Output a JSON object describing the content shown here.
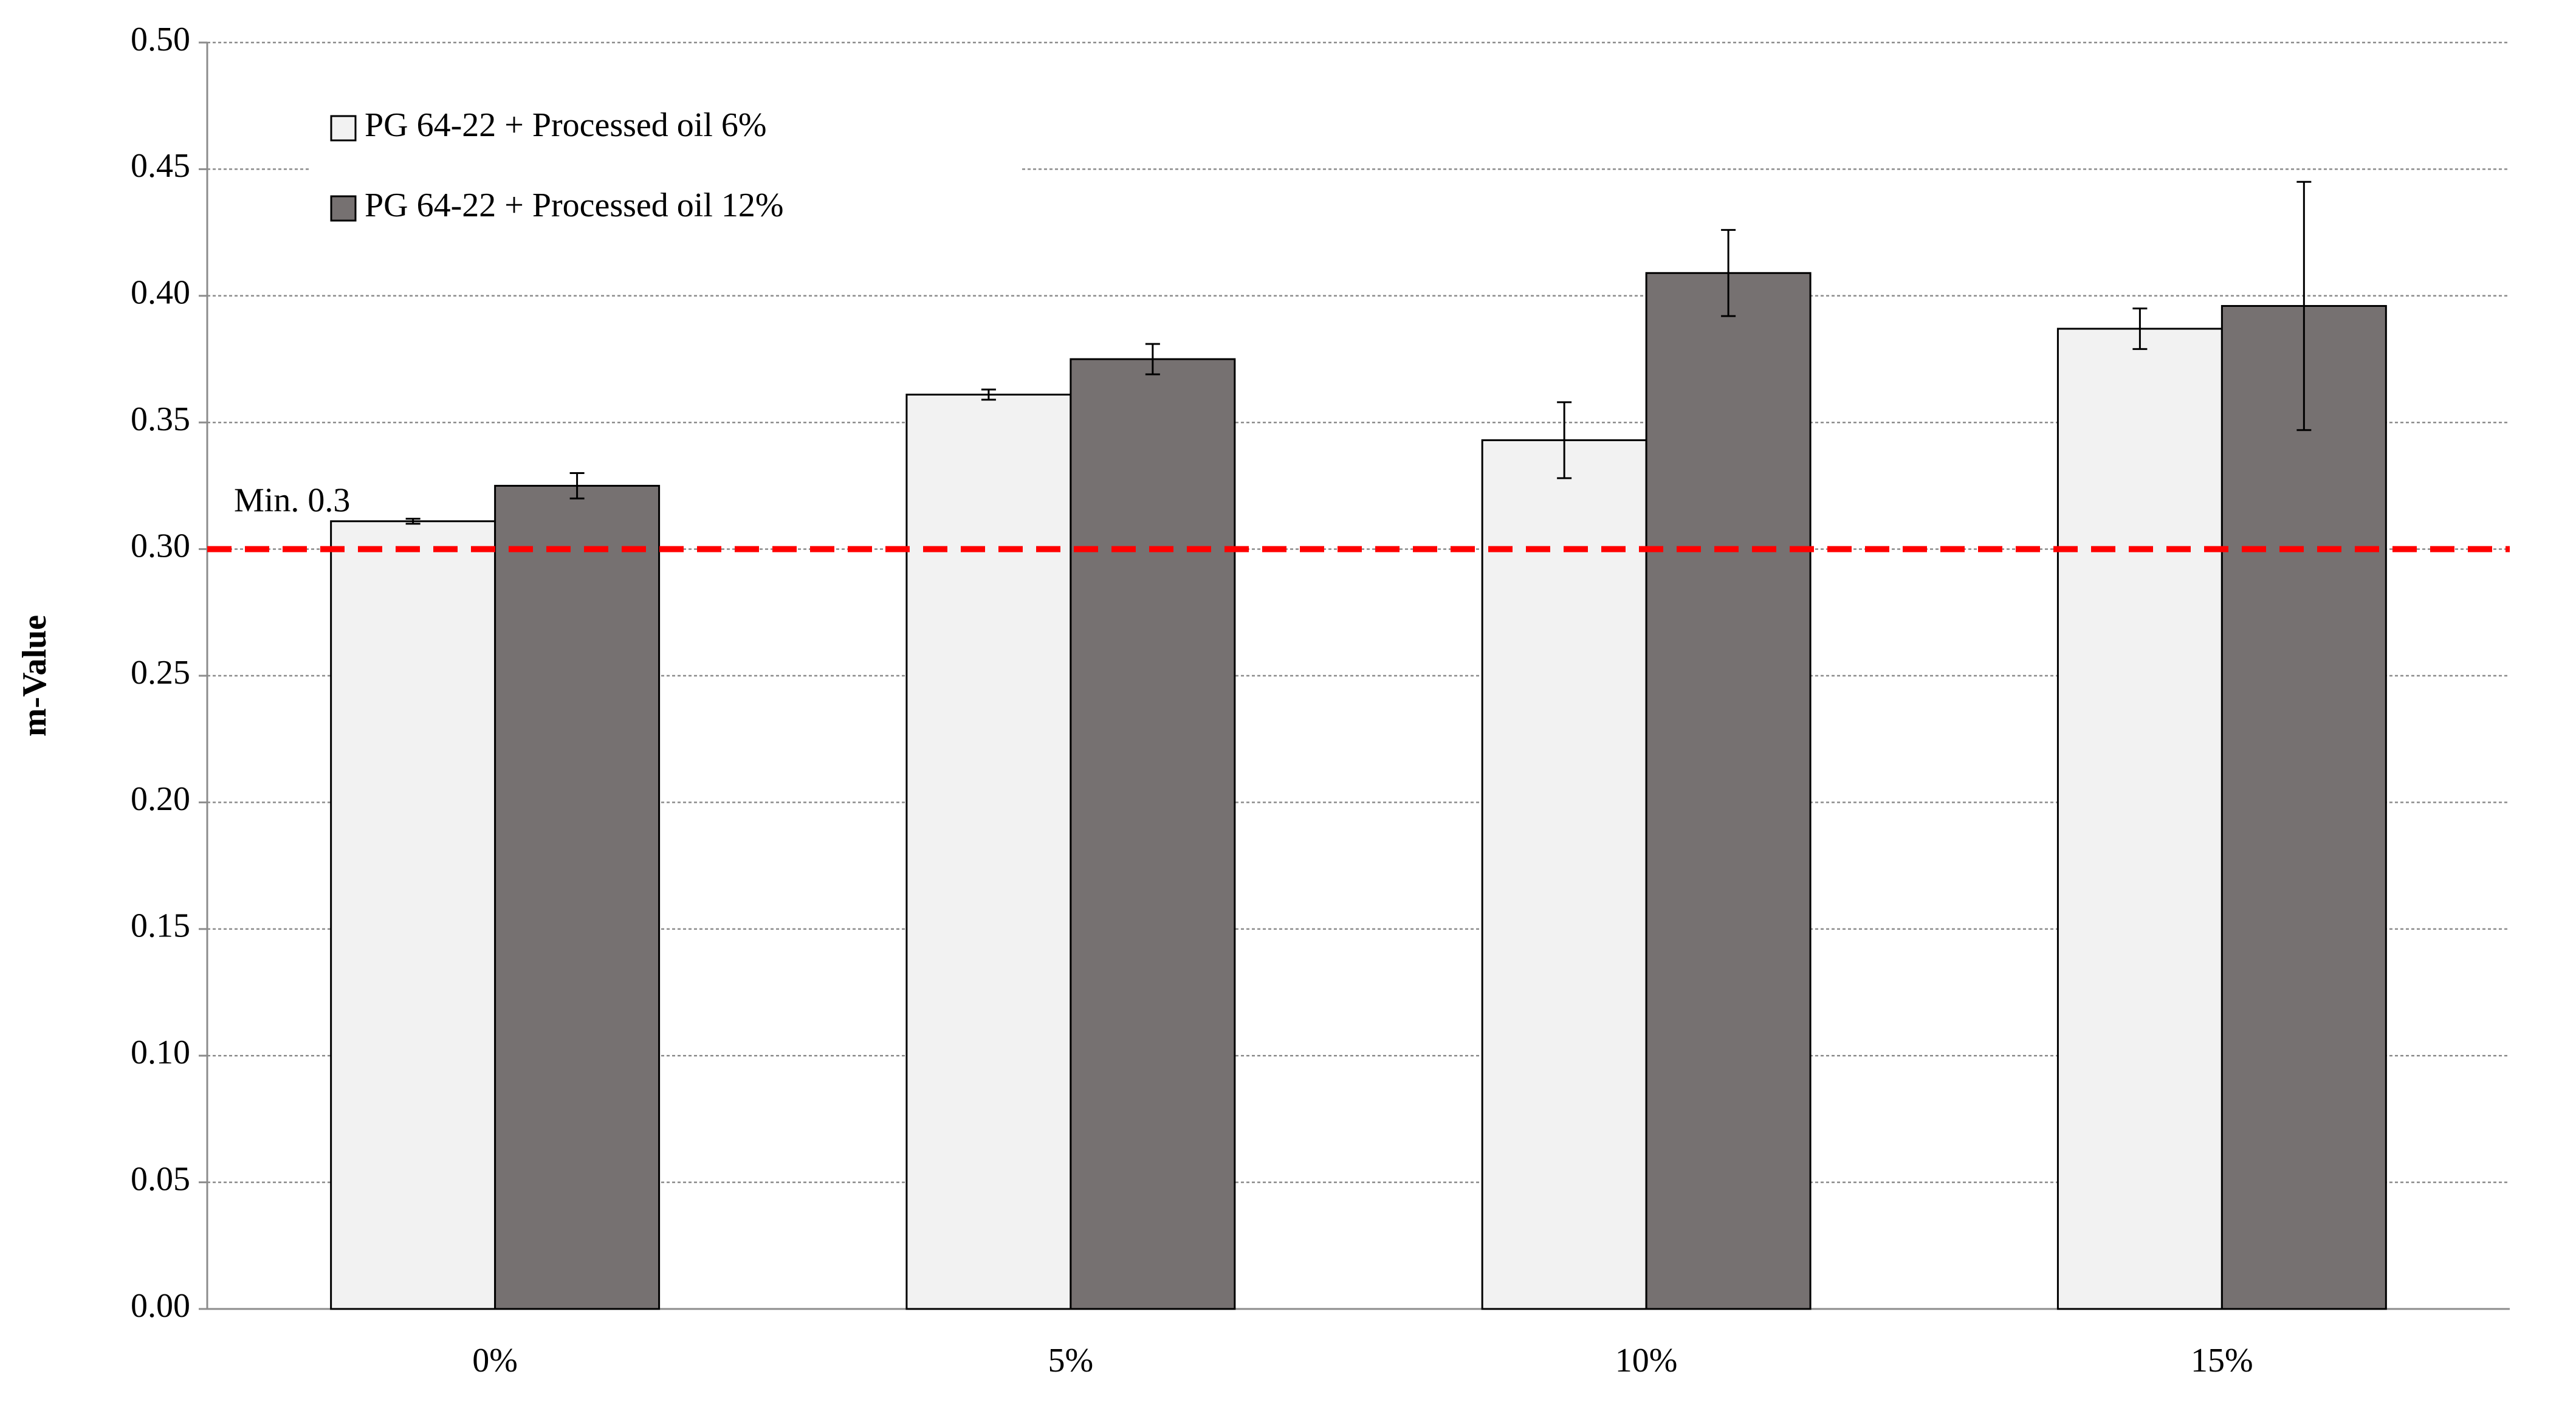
{
  "chart_data": {
    "type": "bar",
    "y_label": "m-Value",
    "categories": [
      "0%",
      "5%",
      "10%",
      "15%"
    ],
    "series": [
      {
        "name": "PG 64-22 + Processed oil 6%",
        "color": "#f2f2f2",
        "values": [
          0.311,
          0.361,
          0.343,
          0.387
        ],
        "errors": [
          0.001,
          0.002,
          0.015,
          0.008
        ]
      },
      {
        "name": "PG 64-22 + Processed oil 12%",
        "color": "#767171",
        "values": [
          0.325,
          0.375,
          0.409,
          0.396
        ],
        "errors": [
          0.005,
          0.006,
          0.017,
          0.049
        ]
      }
    ],
    "ylim": [
      0,
      0.5
    ],
    "yticks": [
      {
        "value": 0,
        "label": "0.00"
      },
      {
        "value": 0.05,
        "label": "0.05"
      },
      {
        "value": 0.1,
        "label": "0.10"
      },
      {
        "value": 0.15,
        "label": "0.15"
      },
      {
        "value": 0.2,
        "label": "0.20"
      },
      {
        "value": 0.25,
        "label": "0.25"
      },
      {
        "value": 0.3,
        "label": "0.30"
      },
      {
        "value": 0.35,
        "label": "0.35"
      },
      {
        "value": 0.4,
        "label": "0.40"
      },
      {
        "value": 0.45,
        "label": "0.45"
      },
      {
        "value": 0.5,
        "label": "0.50"
      }
    ],
    "grid": true,
    "legend_position": "upper left",
    "reference_line": {
      "value": 0.3,
      "label": "Min. 0.3",
      "color": "#ff0000"
    }
  }
}
